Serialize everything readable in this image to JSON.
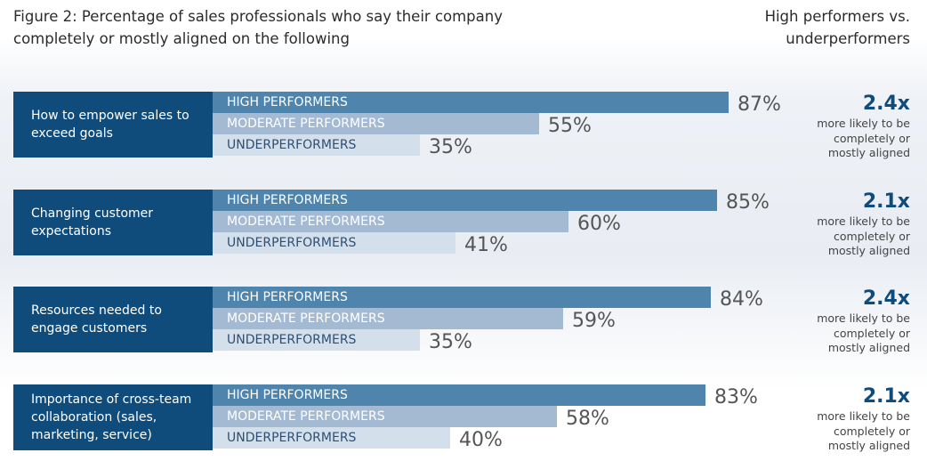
{
  "title": "Figure 2: Percentage of sales professionals who say their company completely or mostly aligned on the following",
  "side_title": "High performers vs. underperformers",
  "colors": {
    "category_box": "#0f4c7c",
    "high": "#4f84ad",
    "moderate": "#a4bad3",
    "under": "#d4dfec",
    "ratio": "#0f4c7c"
  },
  "chart_data": {
    "type": "bar",
    "orientation": "horizontal",
    "title": "Figure 2: Percentage of sales professionals who say their company completely or mostly aligned on the following",
    "value_unit": "%",
    "xlim": [
      0,
      100
    ],
    "grid": false,
    "legend": "inline bar labels",
    "series_labels": [
      "HIGH PERFORMERS",
      "MODERATE PERFORMERS",
      "UNDERPERFORMERS"
    ],
    "categories": [
      {
        "label": "How to empower sales to exceed goals",
        "values": [
          87,
          55,
          35
        ],
        "value_labels": [
          "87%",
          "55%",
          "35%"
        ],
        "ratio": "2.4x",
        "ratio_note": "more likely to be completely or mostly aligned"
      },
      {
        "label": "Changing customer expectations",
        "values": [
          85,
          60,
          41
        ],
        "value_labels": [
          "85%",
          "60%",
          "41%"
        ],
        "ratio": "2.1x",
        "ratio_note": "more likely to be completely or mostly aligned"
      },
      {
        "label": "Resources needed to engage customers",
        "values": [
          84,
          59,
          35
        ],
        "value_labels": [
          "84%",
          "59%",
          "35%"
        ],
        "ratio": "2.4x",
        "ratio_note": "more likely to be completely or mostly aligned"
      },
      {
        "label": "Importance of cross-team collaboration (sales, marketing, service)",
        "values": [
          83,
          58,
          40
        ],
        "value_labels": [
          "83%",
          "58%",
          "40%"
        ],
        "ratio": "2.1x",
        "ratio_note": "more likely to be completely or mostly aligned"
      }
    ]
  }
}
